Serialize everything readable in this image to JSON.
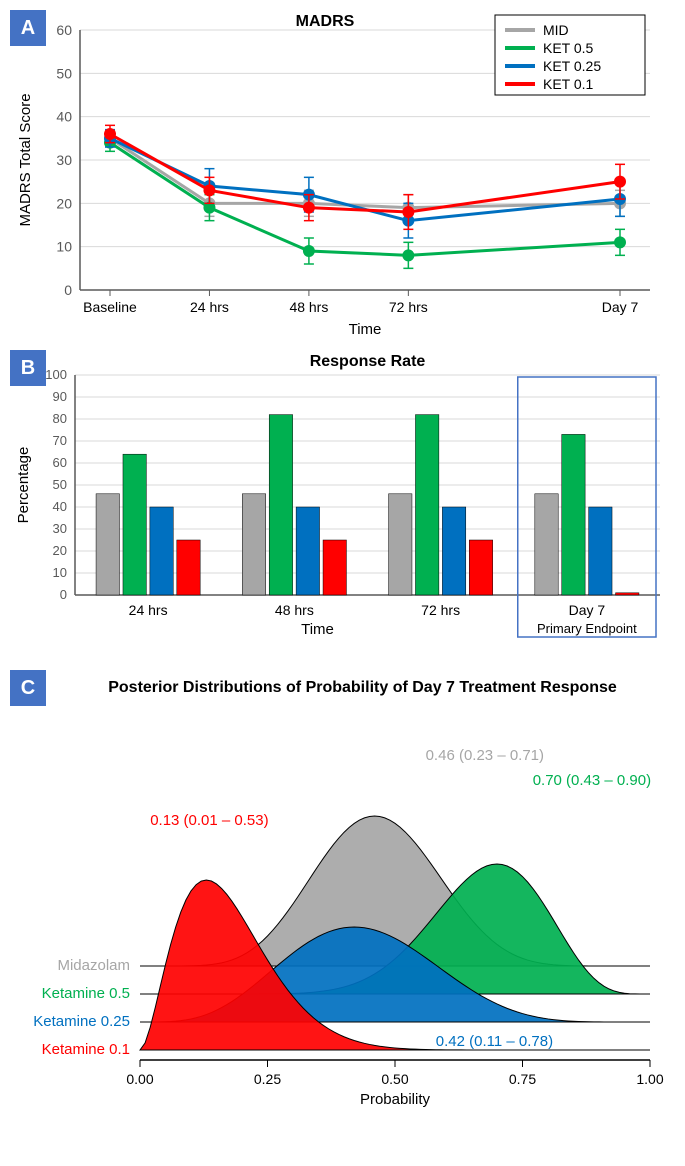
{
  "colors": {
    "mid": "#a6a6a6",
    "ket05": "#00b050",
    "ket025": "#0070c0",
    "ket01": "#ff0000",
    "panel_bg": "#4472c4",
    "grid": "#d9d9d9",
    "axis": "#595959",
    "text": "#000000",
    "highlight_box": "#4472c4"
  },
  "panelA": {
    "label": "A",
    "title": "MADRS",
    "ylabel": "MADRS Total Score",
    "xlabel": "Time",
    "ylim": [
      0,
      60
    ],
    "ytick_step": 10,
    "xcats": [
      "Baseline",
      "24 hrs",
      "48 hrs",
      "72 hrs",
      "Day 7"
    ],
    "legend": [
      {
        "label": "MID",
        "color": "#a6a6a6"
      },
      {
        "label": "KET 0.5",
        "color": "#00b050"
      },
      {
        "label": "KET 0.25",
        "color": "#0070c0"
      },
      {
        "label": "KET 0.1",
        "color": "#ff0000"
      }
    ],
    "series": {
      "mid": {
        "y": [
          35,
          20,
          20,
          19,
          20
        ],
        "err": [
          2,
          3,
          3,
          3,
          3
        ],
        "color": "#a6a6a6"
      },
      "ket05": {
        "y": [
          34,
          19,
          9,
          8,
          11
        ],
        "err": [
          2,
          3,
          3,
          3,
          3
        ],
        "color": "#00b050"
      },
      "ket025": {
        "y": [
          35,
          24,
          22,
          16,
          21
        ],
        "err": [
          2,
          4,
          4,
          4,
          4
        ],
        "color": "#0070c0"
      },
      "ket01": {
        "y": [
          36,
          23,
          19,
          18,
          25
        ],
        "err": [
          2,
          3,
          3,
          4,
          4
        ],
        "color": "#ff0000"
      }
    }
  },
  "panelB": {
    "label": "B",
    "title": "Response Rate",
    "ylabel": "Percentage",
    "xlabel": "Time",
    "ylim": [
      0,
      100
    ],
    "ytick_step": 10,
    "xcats": [
      "24 hrs",
      "48 hrs",
      "72 hrs",
      "Day 7"
    ],
    "highlight_label": "Primary Endpoint",
    "series_order": [
      "mid",
      "ket05",
      "ket025",
      "ket01"
    ],
    "values": {
      "mid": [
        46,
        46,
        46,
        46
      ],
      "ket05": [
        64,
        82,
        82,
        73
      ],
      "ket025": [
        40,
        40,
        40,
        40
      ],
      "ket01": [
        25,
        25,
        25,
        1
      ]
    },
    "bar_colors": {
      "mid": "#a6a6a6",
      "ket05": "#00b050",
      "ket025": "#0070c0",
      "ket01": "#ff0000"
    }
  },
  "panelC": {
    "label": "C",
    "title": "Posterior Distributions of Probability of Day 7 Treatment Response",
    "xlabel": "Probability",
    "xlim": [
      0,
      1
    ],
    "xtick_step": 0.25,
    "groups": [
      {
        "name": "Midazolam",
        "color": "#a6a6a6",
        "mean": 0.46,
        "ci": [
          0.23,
          0.71
        ],
        "stat": "0.46 (0.23 – 0.71)"
      },
      {
        "name": "Ketamine 0.5",
        "color": "#00b050",
        "mean": 0.7,
        "ci": [
          0.43,
          0.9
        ],
        "stat": "0.70 (0.43 – 0.90)"
      },
      {
        "name": "Ketamine 0.25",
        "color": "#0070c0",
        "mean": 0.42,
        "ci": [
          0.11,
          0.78
        ],
        "stat": "0.42 (0.11 – 0.78)"
      },
      {
        "name": "Ketamine 0.1",
        "color": "#ff0000",
        "mean": 0.13,
        "ci": [
          0.01,
          0.53
        ],
        "stat": "0.13 (0.01 – 0.53)"
      }
    ]
  }
}
